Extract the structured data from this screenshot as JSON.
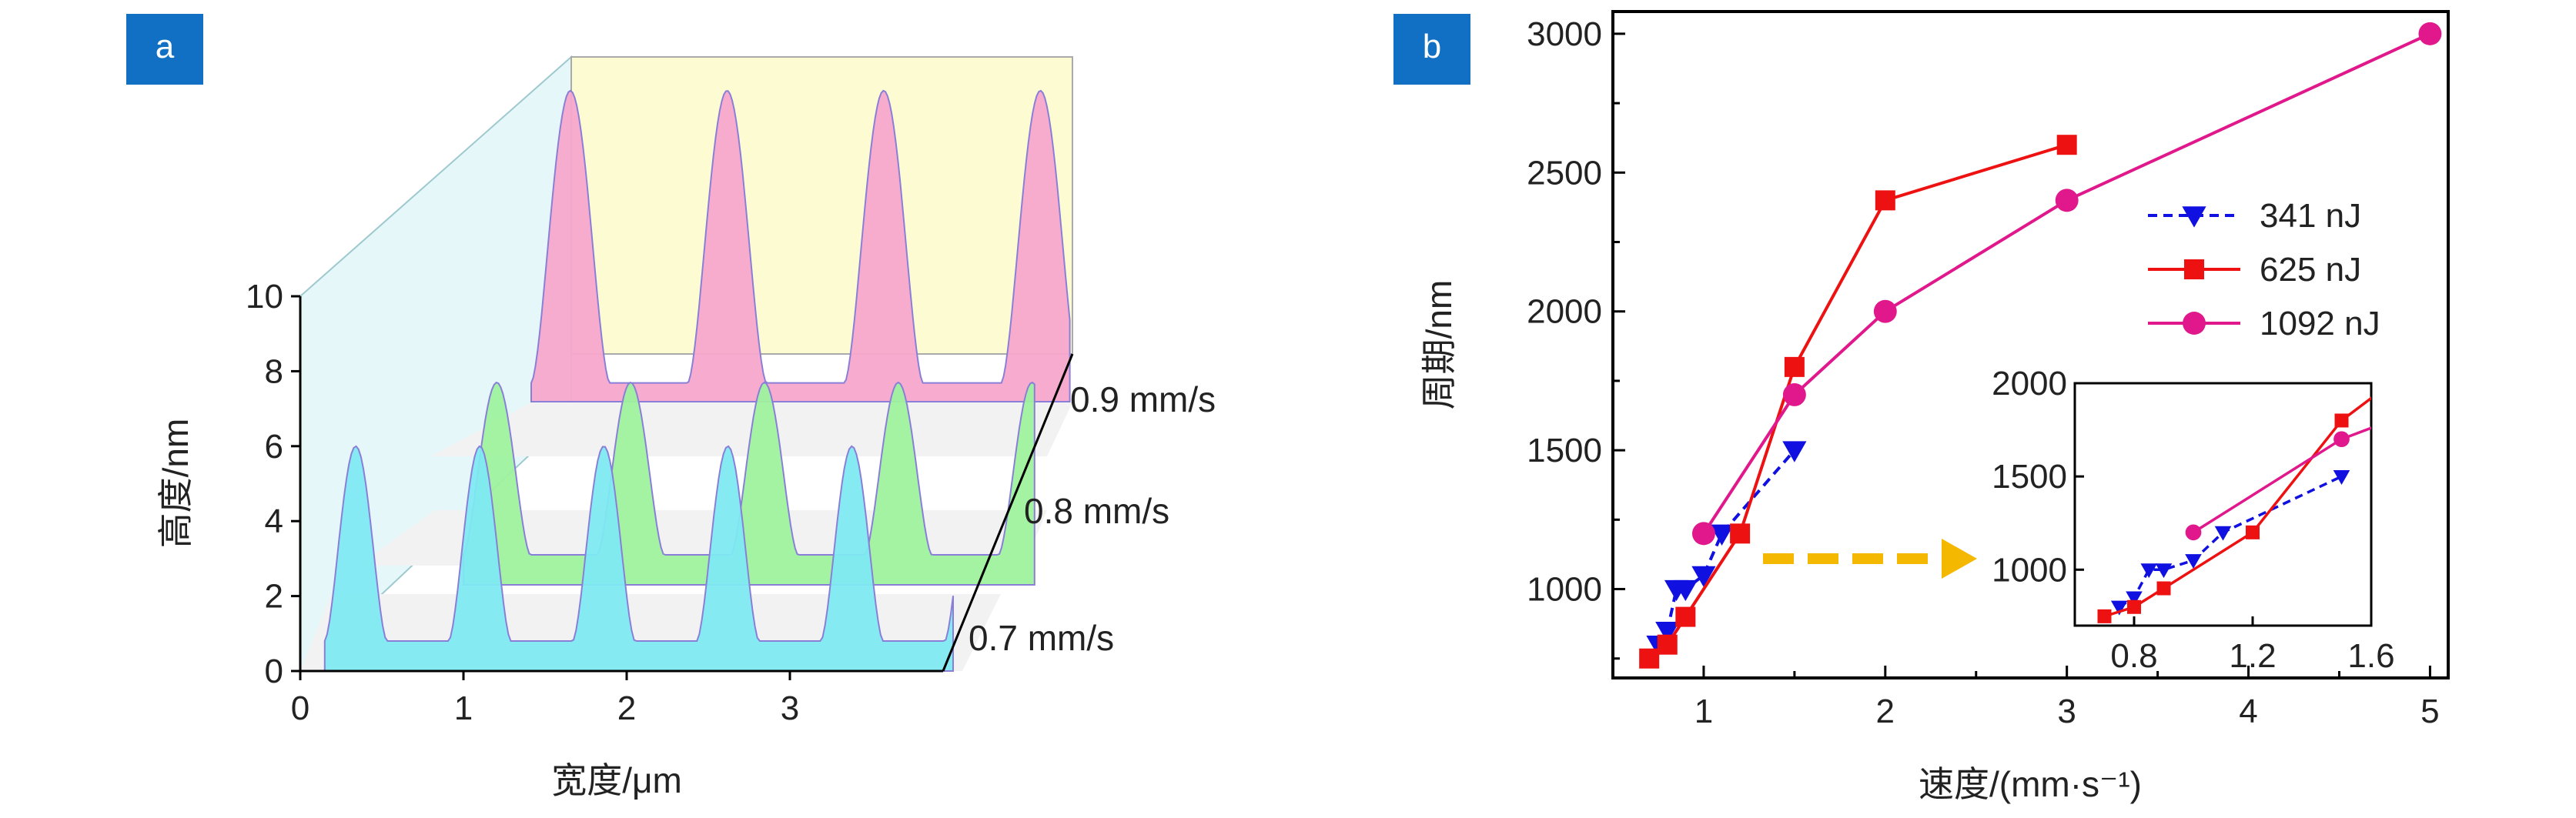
{
  "panel_a": {
    "badge": "a",
    "badge_color": "#1170c4",
    "ylabel": "高度/nm",
    "xlabel": "宽度/μm",
    "y_ticks": [
      "0",
      "2",
      "4",
      "6",
      "8",
      "10"
    ],
    "x_ticks": [
      "0",
      "1",
      "2",
      "3"
    ],
    "speed_labels": [
      "0.7 mm/s",
      "0.8 mm/s",
      "0.9 mm/s"
    ]
  },
  "panel_b": {
    "badge": "b",
    "badge_color": "#1170c4",
    "ylabel": "周期/nm",
    "xlabel": "速度/(mm·s⁻¹)",
    "y_ticks": [
      "1000",
      "1500",
      "2000",
      "2500",
      "3000"
    ],
    "x_ticks": [
      "1",
      "2",
      "3",
      "4",
      "5"
    ],
    "inset_y_ticks": [
      "1000",
      "1500",
      "2000"
    ],
    "inset_x_ticks": [
      "0.8",
      "1.2",
      "1.6"
    ],
    "arrow_color": "#f5b800"
  },
  "chart_data": [
    {
      "type": "area",
      "title": "",
      "xlabel": "宽度/μm",
      "ylabel": "高度/nm",
      "xlim": [
        0,
        4
      ],
      "ylim": [
        0,
        10
      ],
      "series": [
        {
          "name": "0.7 mm/s",
          "color": "#7fe9f2",
          "baseline": 0.8,
          "amplitude": 5.2,
          "period_um": 0.76,
          "x_range": [
            0.15,
            4.0
          ]
        },
        {
          "name": "0.8 mm/s",
          "color": "#9ef29e",
          "baseline": 0.8,
          "amplitude": 4.6,
          "period_um": 0.82,
          "x_range": [
            0.15,
            3.65
          ]
        },
        {
          "name": "0.9 mm/s",
          "color": "#f7a8cc",
          "baseline": 0.5,
          "amplitude": 7.8,
          "period_um": 0.96,
          "x_range": [
            0.0,
            3.3
          ]
        }
      ]
    },
    {
      "type": "line",
      "title": "",
      "xlabel": "速度/(mm·s⁻¹)",
      "ylabel": "周期/nm",
      "xlim": [
        0.5,
        5.1
      ],
      "ylim": [
        680,
        3080
      ],
      "series": [
        {
          "name": "341 nJ",
          "color": "#1010e0",
          "marker": "triangle-down",
          "dashed": true,
          "x": [
            0.75,
            0.8,
            0.85,
            0.9,
            1.0,
            1.1,
            1.5
          ],
          "y": [
            800,
            850,
            1000,
            1000,
            1050,
            1200,
            1500
          ]
        },
        {
          "name": "625 nJ",
          "color": "#ee1111",
          "marker": "square",
          "dashed": false,
          "x": [
            0.7,
            0.8,
            0.9,
            1.2,
            1.5,
            2.0,
            3.0
          ],
          "y": [
            750,
            800,
            900,
            1200,
            1800,
            2400,
            2600
          ]
        },
        {
          "name": "1092 nJ",
          "color": "#e0188c",
          "marker": "circle",
          "dashed": false,
          "x": [
            1.0,
            1.5,
            2.0,
            3.0,
            5.0
          ],
          "y": [
            1200,
            1700,
            2000,
            2400,
            3000
          ]
        }
      ],
      "inset": {
        "xlim": [
          0.6,
          1.6
        ],
        "ylim": [
          700,
          2000
        ]
      }
    }
  ]
}
